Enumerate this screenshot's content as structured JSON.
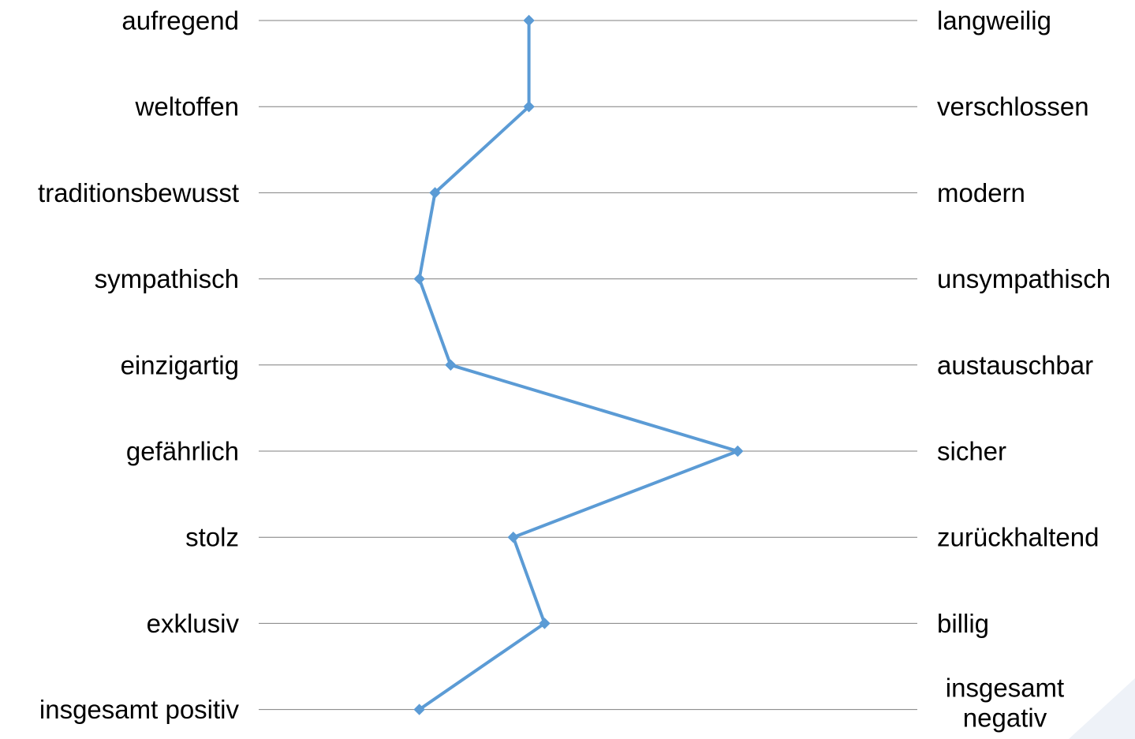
{
  "chart_data": {
    "type": "line",
    "title": "",
    "xlabel": "",
    "ylabel": "",
    "xlim": [
      1,
      7
    ],
    "grid": false,
    "legend": "none",
    "line_color": "#5B9BD5",
    "grid_color": "#7F7F7F",
    "marker": "diamond",
    "left_labels": [
      "aufregend",
      "weltoffen",
      "traditionsbewusst",
      "sympathisch",
      "einzigartig",
      "gefährlich",
      "stolz",
      "exklusiv",
      "insgesamt positiv"
    ],
    "right_labels": [
      "langweilig",
      "verschlossen",
      "modern",
      "unsympathisch",
      "austauschbar",
      "sicher",
      "zurückhaltend",
      "billig",
      [
        "insgesamt",
        "negativ"
      ]
    ],
    "values": [
      3.4,
      3.4,
      2.5,
      2.35,
      2.65,
      5.4,
      3.25,
      3.55,
      2.35
    ]
  }
}
